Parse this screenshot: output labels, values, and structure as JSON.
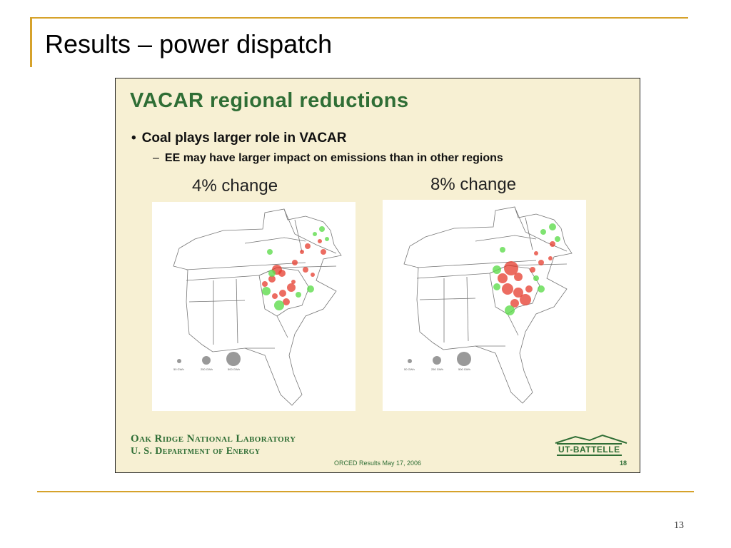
{
  "slide": {
    "title": "Results – power dispatch",
    "page_number": "13"
  },
  "embedded": {
    "heading": "VACAR regional reductions",
    "bullet1": "Coal plays larger role in VACAR",
    "bullet2": "EE may have larger impact on emissions than in other regions",
    "map_left_title": "4% change",
    "map_right_title": "8% change",
    "legend_labels": [
      "50 GWh",
      "250 GWh",
      "500 GWh"
    ],
    "org_line1": "Oak Ridge National Laboratory",
    "org_line2": "U. S. Department of Energy",
    "footer_text": "ORCED Results May 17, 2006",
    "slide_number": "18",
    "logo_text": "UT-BATTELLE"
  },
  "colors": {
    "accent_rule": "#d6a22b",
    "heading_green": "#2f6e35",
    "increase_red": "#e53b2c",
    "decrease_green": "#5fdc4e"
  }
}
